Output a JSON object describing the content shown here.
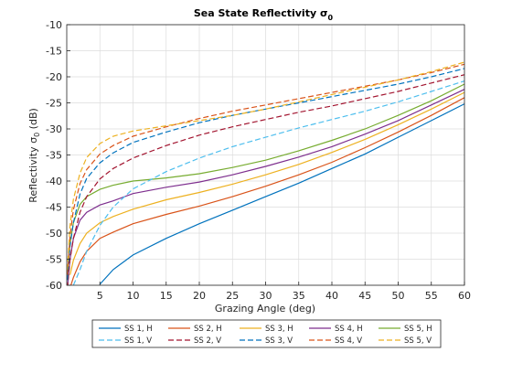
{
  "chart_data": {
    "type": "line",
    "title": "Sea State Reflectivity σ",
    "title_sub": "0",
    "xlabel": "Grazing Angle (deg)",
    "ylabel": "Reflectivity σ",
    "ylabel_sub": "0",
    "ylabel_unit": " (dB)",
    "xlim": [
      0,
      60
    ],
    "ylim": [
      -60,
      -10
    ],
    "xticks": [
      5,
      10,
      15,
      20,
      25,
      30,
      35,
      40,
      45,
      50,
      55,
      60
    ],
    "yticks": [
      -60,
      -55,
      -50,
      -45,
      -40,
      -35,
      -30,
      -25,
      -20,
      -15,
      -10
    ],
    "grid": true,
    "legend_position": "bottom-outside",
    "x": [
      0.1,
      0.5,
      1,
      2,
      3,
      5,
      7,
      10,
      15,
      20,
      25,
      30,
      35,
      40,
      45,
      50,
      55,
      60
    ],
    "series": [
      {
        "name": "SS 1, H",
        "color": "#0072BD",
        "dash": "solid",
        "values": [
          null,
          null,
          null,
          null,
          null,
          -59.8,
          -57.0,
          -54.2,
          -51.0,
          -48.2,
          -45.6,
          -43.0,
          -40.4,
          -37.6,
          -34.8,
          -31.6,
          -28.4,
          -25.2
        ]
      },
      {
        "name": "SS 2, H",
        "color": "#D95319",
        "dash": "solid",
        "values": [
          null,
          -60.5,
          -58.5,
          -55.5,
          -53.5,
          -51.0,
          -49.8,
          -48.2,
          -46.4,
          -44.8,
          -43.0,
          -41.0,
          -38.8,
          -36.4,
          -33.6,
          -30.6,
          -27.4,
          -24.0
        ]
      },
      {
        "name": "SS 3, H",
        "color": "#EDB120",
        "dash": "solid",
        "values": [
          null,
          -58.0,
          -55.2,
          -52.0,
          -50.0,
          -48.0,
          -46.8,
          -45.4,
          -43.6,
          -42.2,
          -40.6,
          -38.8,
          -36.8,
          -34.5,
          -32.0,
          -29.2,
          -26.2,
          -23.0
        ]
      },
      {
        "name": "SS 4, H",
        "color": "#7E2F8E",
        "dash": "solid",
        "values": [
          -60.5,
          -55.0,
          -51.0,
          -47.5,
          -46.0,
          -44.6,
          -43.8,
          -42.4,
          -41.2,
          -40.2,
          -38.8,
          -37.2,
          -35.4,
          -33.4,
          -31.0,
          -28.4,
          -25.4,
          -22.4
        ]
      },
      {
        "name": "SS 5, H",
        "color": "#77AC30",
        "dash": "solid",
        "values": [
          -58.0,
          -52.0,
          -48.0,
          -44.5,
          -43.0,
          -41.6,
          -40.8,
          -40.0,
          -39.4,
          -38.6,
          -37.4,
          -36.0,
          -34.2,
          -32.2,
          -30.0,
          -27.4,
          -24.6,
          -21.4
        ]
      },
      {
        "name": "SS 1, V",
        "color": "#4DBEEE",
        "dash": "dashed",
        "values": [
          null,
          null,
          -60.0,
          -57.0,
          -53.5,
          -48.5,
          -45.0,
          -41.5,
          -38.2,
          -35.6,
          -33.4,
          -31.6,
          -29.8,
          -28.2,
          -26.6,
          -24.8,
          -22.8,
          -20.8
        ]
      },
      {
        "name": "SS 2, V",
        "color": "#A2142F",
        "dash": "dashed",
        "values": [
          -60.5,
          -55.0,
          -51.0,
          -46.0,
          -43.0,
          -39.6,
          -37.6,
          -35.6,
          -33.2,
          -31.2,
          -29.6,
          -28.2,
          -26.8,
          -25.6,
          -24.2,
          -22.8,
          -21.2,
          -19.6
        ]
      },
      {
        "name": "SS 3, V",
        "color": "#0072BD",
        "dash": "dashed",
        "values": [
          -59.0,
          -52.5,
          -48.0,
          -42.5,
          -39.5,
          -36.5,
          -34.6,
          -32.6,
          -30.6,
          -28.8,
          -27.4,
          -26.2,
          -25.0,
          -23.8,
          -22.6,
          -21.4,
          -20.0,
          -18.4
        ]
      },
      {
        "name": "SS 4, V",
        "color": "#D95319",
        "dash": "dashed",
        "values": [
          -58.0,
          -50.5,
          -45.5,
          -40.5,
          -37.8,
          -34.8,
          -33.2,
          -31.4,
          -29.6,
          -28.0,
          -26.6,
          -25.4,
          -24.2,
          -23.0,
          -21.8,
          -20.6,
          -19.2,
          -17.6
        ]
      },
      {
        "name": "SS 5, V",
        "color": "#EDB120",
        "dash": "dashed",
        "values": [
          -57.0,
          -48.5,
          -43.5,
          -38.5,
          -35.5,
          -32.8,
          -31.4,
          -30.4,
          -29.4,
          -28.4,
          -27.4,
          -26.2,
          -24.8,
          -23.4,
          -22.0,
          -20.6,
          -19.0,
          -17.2
        ]
      }
    ]
  }
}
